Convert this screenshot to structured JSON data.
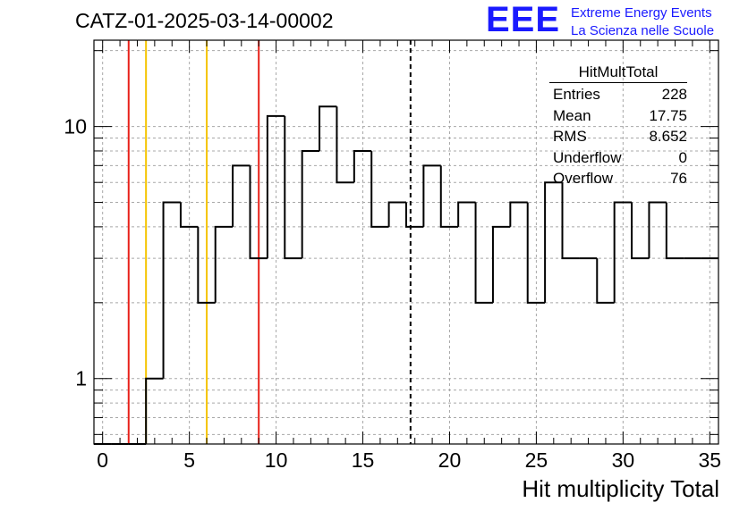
{
  "title": "CATZ-01-2025-03-14-00002",
  "logo": {
    "mark": "EEE",
    "line1": "Extreme Energy Events",
    "line2": "La Scienza nelle Scuole",
    "color": "#1a1aff"
  },
  "stats": {
    "name": "HitMultTotal",
    "rows": [
      {
        "label": "Entries",
        "value": "228"
      },
      {
        "label": "Mean",
        "value": "17.75"
      },
      {
        "label": "RMS",
        "value": "8.652"
      },
      {
        "label": "Underflow",
        "value": "0"
      },
      {
        "label": "Overflow",
        "value": "76"
      }
    ]
  },
  "chart_data": {
    "type": "histogram",
    "title": "CATZ-01-2025-03-14-00002",
    "xlabel": "Hit multiplicity Total",
    "ylabel": "",
    "x_bin_width": 1,
    "x_bin_start": -0.5,
    "xlim": [
      -0.5,
      35.5
    ],
    "ylim": [
      0.55,
      22
    ],
    "y_scale": "log",
    "grid": true,
    "x_ticks": [
      0,
      5,
      10,
      15,
      20,
      25,
      30,
      35
    ],
    "y_tick_labels": [
      {
        "value": 1,
        "label": "1"
      },
      {
        "value": 10,
        "label": "10"
      }
    ],
    "bin_contents": [
      0,
      0,
      0,
      1,
      5,
      4,
      2,
      4,
      7,
      3,
      11,
      3,
      8,
      12,
      6,
      8,
      4,
      5,
      4,
      7,
      4,
      5,
      2,
      4,
      5,
      2,
      6,
      3,
      3,
      2,
      5,
      3,
      5,
      3,
      3,
      3
    ],
    "vertical_markers": [
      {
        "x": 1.5,
        "color": "#e8211a",
        "style": "solid"
      },
      {
        "x": 2.5,
        "color": "#f5c400",
        "style": "solid"
      },
      {
        "x": 6.0,
        "color": "#f5c400",
        "style": "solid"
      },
      {
        "x": 9.0,
        "color": "#e8211a",
        "style": "solid"
      },
      {
        "x": 17.75,
        "color": "#000000",
        "style": "dashed"
      }
    ]
  }
}
